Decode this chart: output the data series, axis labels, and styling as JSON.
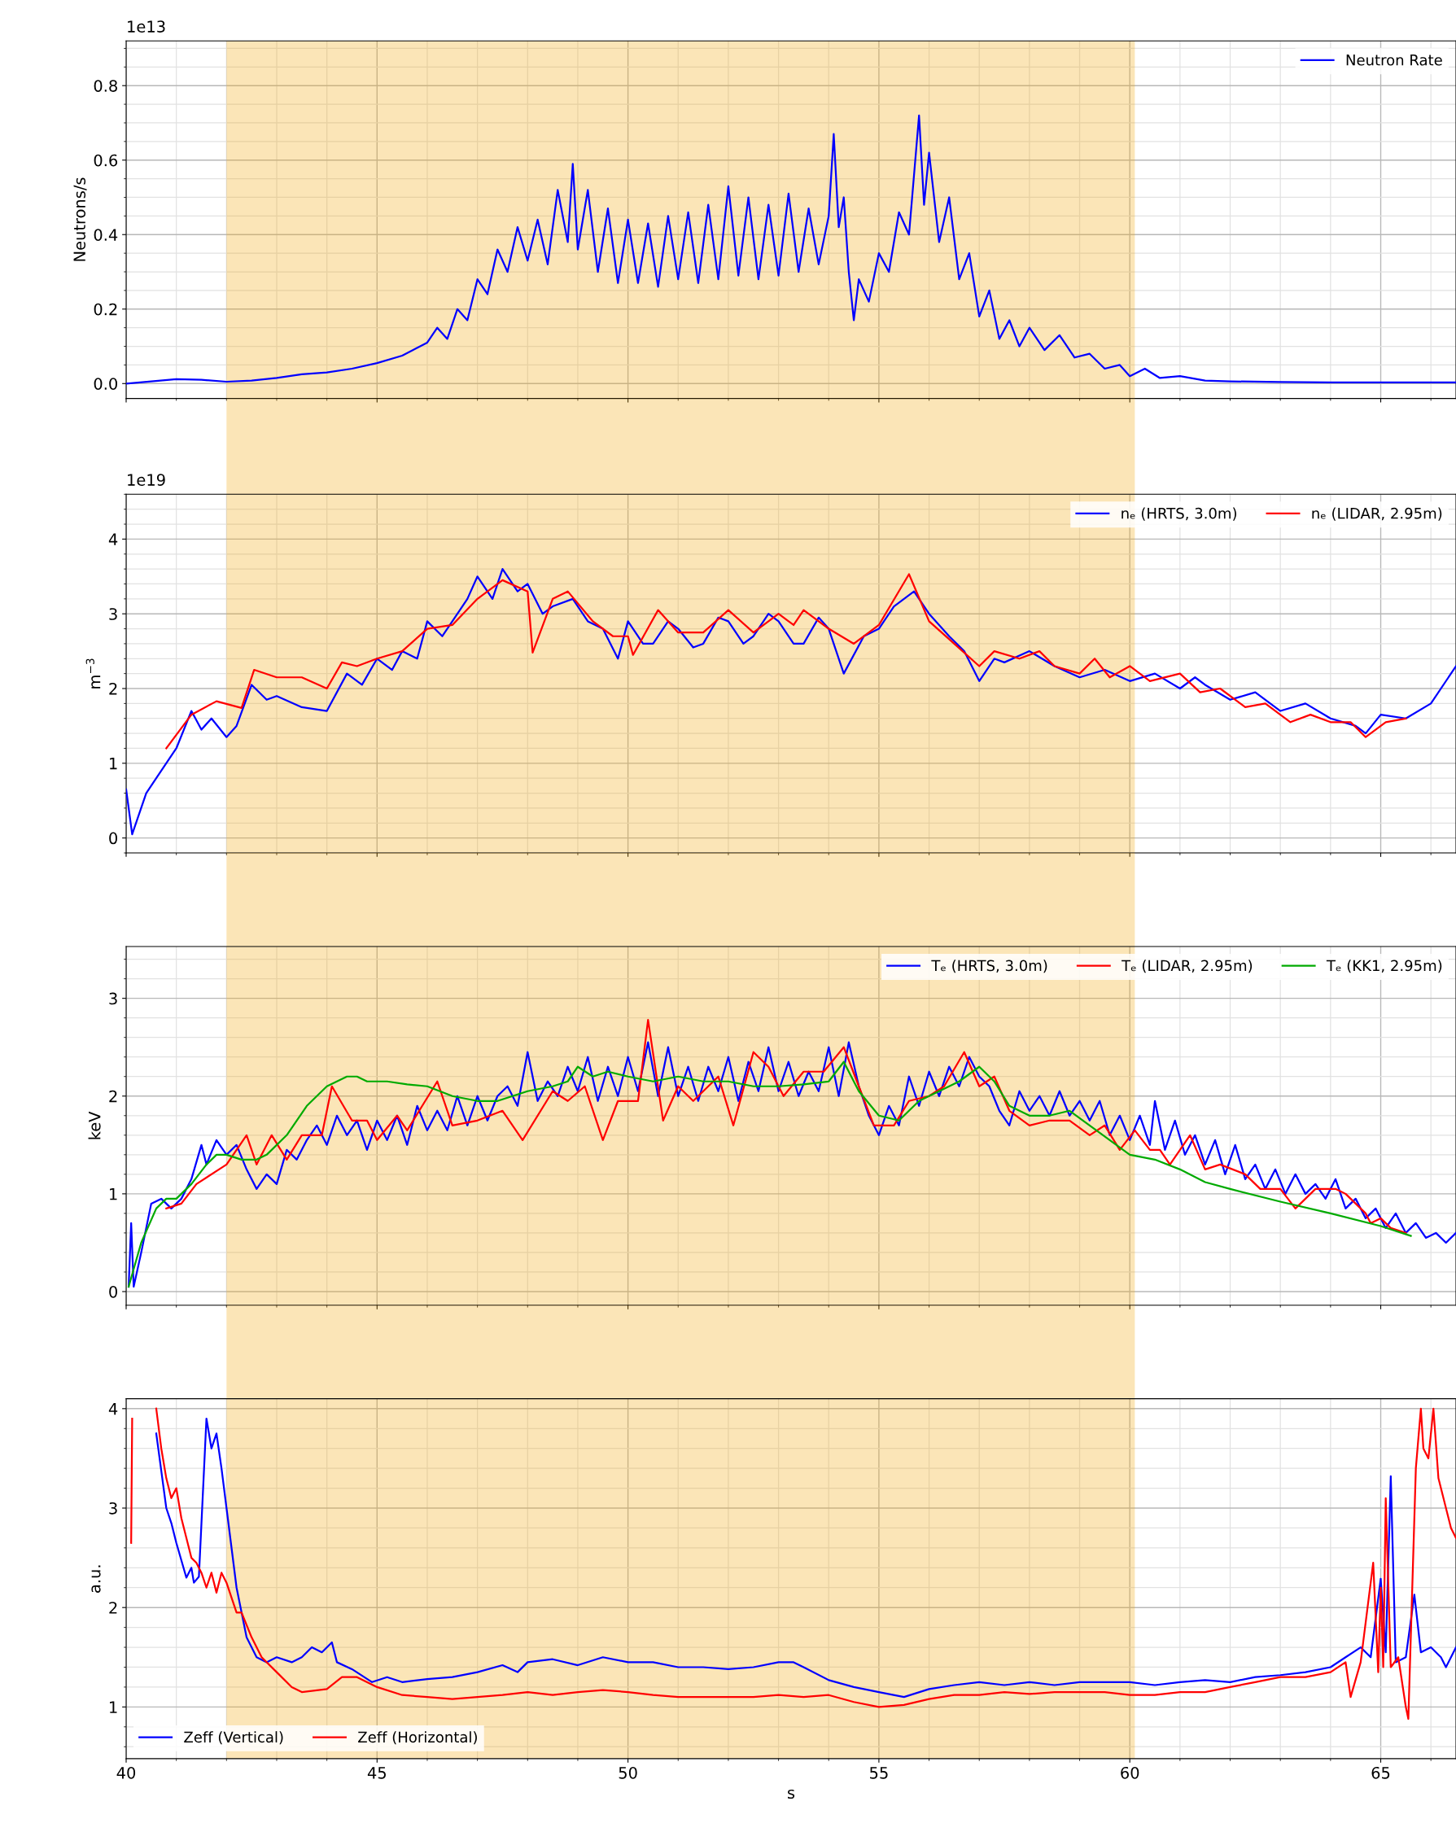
{
  "chart_data": [
    {
      "type": "line",
      "ylabel": "Neutrons/s",
      "annotations": [
        "1e13"
      ],
      "xlim": [
        40,
        66.5
      ],
      "xticks": [
        40,
        45,
        50,
        55,
        60,
        65
      ],
      "ylim": [
        -0.04,
        0.92
      ],
      "yticks": [
        {
          "value": 0,
          "label": "0.0"
        },
        0.2,
        0.4,
        0.6,
        0.8
      ],
      "grid": true,
      "legend": "top right",
      "tick_labels": "y",
      "bands": [
        {
          "axis": "x",
          "from": 42,
          "to": 60.1,
          "color": "#f2a812"
        }
      ],
      "series": [
        {
          "name": "Neutron Rate",
          "color": "#0000ff",
          "x": [
            40,
            41,
            41.5,
            42,
            42.5,
            43,
            43.5,
            44,
            44.5,
            45,
            45.5,
            46,
            46.2,
            46.4,
            46.6,
            46.8,
            47.0,
            47.2,
            47.4,
            47.6,
            47.8,
            48.0,
            48.2,
            48.4,
            48.6,
            48.8,
            48.9,
            49.0,
            49.2,
            49.4,
            49.6,
            49.8,
            50.0,
            50.2,
            50.4,
            50.6,
            50.8,
            51.0,
            51.2,
            51.4,
            51.6,
            51.8,
            52.0,
            52.2,
            52.4,
            52.6,
            52.8,
            53.0,
            53.2,
            53.4,
            53.6,
            53.8,
            54.0,
            54.1,
            54.2,
            54.3,
            54.4,
            54.5,
            54.6,
            54.8,
            55.0,
            55.2,
            55.4,
            55.6,
            55.8,
            55.9,
            56.0,
            56.2,
            56.4,
            56.6,
            56.8,
            57.0,
            57.2,
            57.4,
            57.6,
            57.8,
            58.0,
            58.3,
            58.6,
            58.9,
            59.2,
            59.5,
            59.8,
            60.0,
            60.3,
            60.6,
            61,
            61.5,
            62,
            63,
            64,
            66.5
          ],
          "values": [
            0.0,
            0.012,
            0.01,
            0.005,
            0.008,
            0.015,
            0.025,
            0.03,
            0.04,
            0.055,
            0.075,
            0.11,
            0.15,
            0.12,
            0.2,
            0.17,
            0.28,
            0.24,
            0.36,
            0.3,
            0.42,
            0.33,
            0.44,
            0.32,
            0.52,
            0.38,
            0.59,
            0.36,
            0.52,
            0.3,
            0.47,
            0.27,
            0.44,
            0.27,
            0.43,
            0.26,
            0.45,
            0.28,
            0.46,
            0.27,
            0.48,
            0.28,
            0.53,
            0.29,
            0.5,
            0.28,
            0.48,
            0.29,
            0.51,
            0.3,
            0.47,
            0.32,
            0.45,
            0.67,
            0.42,
            0.5,
            0.3,
            0.17,
            0.28,
            0.22,
            0.35,
            0.3,
            0.46,
            0.4,
            0.72,
            0.48,
            0.62,
            0.38,
            0.5,
            0.28,
            0.35,
            0.18,
            0.25,
            0.12,
            0.17,
            0.1,
            0.15,
            0.09,
            0.13,
            0.07,
            0.08,
            0.04,
            0.05,
            0.02,
            0.04,
            0.015,
            0.02,
            0.008,
            0.006,
            0.004,
            0.003,
            0.003
          ]
        }
      ]
    },
    {
      "type": "line",
      "ylabel": "m$^{−3}$",
      "annotations": [
        "1e19"
      ],
      "xlim": [
        40,
        66.5
      ],
      "xticks": [
        40,
        45,
        50,
        55,
        60,
        65
      ],
      "ylim": [
        -0.2,
        4.6
      ],
      "yticks": [
        0,
        1,
        2,
        3,
        4
      ],
      "grid": true,
      "legend": "top right",
      "tick_labels": "y",
      "bands": [
        {
          "axis": "x",
          "from": 42,
          "to": 60.1,
          "color": "#f2a812"
        }
      ],
      "series": [
        {
          "name": "nₑ (HRTS, 3.0m)",
          "color": "#0000ff",
          "x": [
            40,
            40.12,
            40.4,
            40.6,
            41,
            41.3,
            41.5,
            41.7,
            42,
            42.2,
            42.5,
            42.8,
            43,
            43.5,
            44,
            44.4,
            44.7,
            45,
            45.3,
            45.5,
            45.8,
            46,
            46.3,
            46.5,
            46.8,
            47,
            47.3,
            47.5,
            47.8,
            48,
            48.3,
            48.5,
            48.9,
            49.2,
            49.5,
            49.8,
            50,
            50.3,
            50.5,
            50.8,
            51,
            51.3,
            51.5,
            51.8,
            52,
            52.3,
            52.5,
            52.8,
            53,
            53.3,
            53.5,
            53.8,
            54,
            54.3,
            54.7,
            55,
            55.3,
            55.7,
            56,
            56.4,
            56.7,
            57,
            57.3,
            57.5,
            58,
            58.5,
            59,
            59.5,
            60,
            60.5,
            61,
            61.3,
            61.5,
            62,
            62.5,
            63,
            63.5,
            64,
            64.5,
            64.7,
            65,
            65.5,
            66,
            66.5
          ],
          "values": [
            0.65,
            0.05,
            0.6,
            0.8,
            1.2,
            1.7,
            1.45,
            1.6,
            1.35,
            1.5,
            2.05,
            1.85,
            1.9,
            1.75,
            1.7,
            2.2,
            2.05,
            2.4,
            2.25,
            2.5,
            2.4,
            2.9,
            2.7,
            2.9,
            3.2,
            3.5,
            3.2,
            3.6,
            3.3,
            3.4,
            3.0,
            3.1,
            3.2,
            2.9,
            2.8,
            2.4,
            2.9,
            2.6,
            2.6,
            2.9,
            2.8,
            2.55,
            2.6,
            2.95,
            2.9,
            2.6,
            2.7,
            3.0,
            2.9,
            2.6,
            2.6,
            2.95,
            2.8,
            2.2,
            2.7,
            2.8,
            3.1,
            3.3,
            3.0,
            2.7,
            2.5,
            2.1,
            2.4,
            2.35,
            2.5,
            2.3,
            2.15,
            2.25,
            2.1,
            2.2,
            2.0,
            2.15,
            2.05,
            1.85,
            1.95,
            1.7,
            1.8,
            1.6,
            1.5,
            1.4,
            1.65,
            1.6,
            1.8,
            2.3
          ]
        },
        {
          "name": "nₑ (LIDAR, 2.95m)",
          "color": "#ff0000",
          "x": [
            40.8,
            41.3,
            41.8,
            42.3,
            42.55,
            43,
            43.5,
            44,
            44.3,
            44.6,
            45,
            45.5,
            46,
            46.5,
            47,
            47.5,
            48,
            48.1,
            48.5,
            48.8,
            49.3,
            49.7,
            50,
            50.1,
            50.6,
            51,
            51.5,
            52,
            52.5,
            53,
            53.3,
            53.5,
            54,
            54.5,
            55,
            55.6,
            56,
            56.5,
            57,
            57.3,
            57.8,
            58.2,
            58.5,
            59,
            59.3,
            59.6,
            60,
            60.4,
            61,
            61.4,
            61.8,
            62.3,
            62.7,
            63.2,
            63.6,
            64,
            64.4,
            64.7,
            65.1,
            65.5
          ],
          "values": [
            1.2,
            1.65,
            1.83,
            1.74,
            2.25,
            2.15,
            2.15,
            2.0,
            2.35,
            2.3,
            2.4,
            2.5,
            2.8,
            2.85,
            3.2,
            3.45,
            3.3,
            2.48,
            3.2,
            3.3,
            2.9,
            2.7,
            2.7,
            2.45,
            3.05,
            2.75,
            2.75,
            3.05,
            2.75,
            3.0,
            2.85,
            3.05,
            2.8,
            2.6,
            2.85,
            3.53,
            2.9,
            2.6,
            2.3,
            2.5,
            2.4,
            2.5,
            2.3,
            2.2,
            2.4,
            2.15,
            2.3,
            2.1,
            2.2,
            1.95,
            2.0,
            1.75,
            1.8,
            1.55,
            1.65,
            1.55,
            1.55,
            1.35,
            1.55,
            1.6
          ]
        }
      ]
    },
    {
      "type": "line",
      "ylabel": "keV",
      "xlim": [
        40,
        66.5
      ],
      "xticks": [
        40,
        45,
        50,
        55,
        60,
        65
      ],
      "ylim": [
        -0.14,
        3.53
      ],
      "yticks": [
        0,
        1,
        2,
        3
      ],
      "grid": true,
      "legend": "top right",
      "tick_labels": "y",
      "bands": [
        {
          "axis": "x",
          "from": 42,
          "to": 60.1,
          "color": "#f2a812"
        }
      ],
      "series": [
        {
          "name": "Tₑ (HRTS, 3.0m)",
          "color": "#0000ff",
          "x": [
            40.05,
            40.1,
            40.15,
            40.3,
            40.5,
            40.7,
            40.9,
            41.1,
            41.3,
            41.5,
            41.6,
            41.8,
            42.0,
            42.2,
            42.4,
            42.6,
            42.8,
            43.0,
            43.2,
            43.4,
            43.6,
            43.8,
            44.0,
            44.2,
            44.4,
            44.6,
            44.8,
            45.0,
            45.2,
            45.4,
            45.6,
            45.8,
            46.0,
            46.2,
            46.4,
            46.6,
            46.8,
            47.0,
            47.2,
            47.4,
            47.6,
            47.8,
            48.0,
            48.2,
            48.4,
            48.6,
            48.8,
            49.0,
            49.2,
            49.4,
            49.6,
            49.8,
            50.0,
            50.2,
            50.4,
            50.6,
            50.8,
            51.0,
            51.2,
            51.4,
            51.6,
            51.8,
            52.0,
            52.2,
            52.4,
            52.6,
            52.8,
            53.0,
            53.2,
            53.4,
            53.6,
            53.8,
            54.0,
            54.2,
            54.4,
            54.6,
            54.8,
            55.0,
            55.2,
            55.4,
            55.6,
            55.8,
            56.0,
            56.2,
            56.4,
            56.6,
            56.8,
            57.0,
            57.2,
            57.4,
            57.6,
            57.8,
            58.0,
            58.2,
            58.4,
            58.6,
            58.8,
            59.0,
            59.2,
            59.4,
            59.6,
            59.8,
            60.0,
            60.2,
            60.4,
            60.5,
            60.7,
            60.9,
            61.1,
            61.3,
            61.5,
            61.7,
            61.9,
            62.1,
            62.3,
            62.5,
            62.7,
            62.9,
            63.1,
            63.3,
            63.5,
            63.7,
            63.9,
            64.1,
            64.3,
            64.5,
            64.7,
            64.9,
            65.1,
            65.3,
            65.5,
            65.7,
            65.9,
            66.1,
            66.3,
            66.5
          ],
          "values": [
            0.05,
            0.7,
            0.05,
            0.4,
            0.9,
            0.95,
            0.85,
            0.95,
            1.15,
            1.5,
            1.3,
            1.55,
            1.4,
            1.5,
            1.25,
            1.05,
            1.2,
            1.1,
            1.45,
            1.35,
            1.55,
            1.7,
            1.5,
            1.8,
            1.6,
            1.75,
            1.45,
            1.75,
            1.55,
            1.8,
            1.5,
            1.9,
            1.65,
            1.85,
            1.65,
            2.0,
            1.7,
            2.0,
            1.75,
            2.0,
            2.1,
            1.9,
            2.45,
            1.95,
            2.15,
            2.0,
            2.3,
            2.05,
            2.4,
            1.95,
            2.3,
            2.0,
            2.4,
            2.05,
            2.55,
            2.0,
            2.5,
            2.0,
            2.3,
            1.95,
            2.3,
            2.05,
            2.4,
            1.95,
            2.35,
            2.05,
            2.5,
            2.05,
            2.35,
            2.0,
            2.25,
            2.05,
            2.5,
            2.0,
            2.55,
            2.1,
            1.8,
            1.6,
            1.9,
            1.7,
            2.2,
            1.9,
            2.25,
            2.0,
            2.3,
            2.1,
            2.4,
            2.2,
            2.1,
            1.85,
            1.7,
            2.05,
            1.85,
            2.0,
            1.8,
            2.05,
            1.8,
            1.95,
            1.75,
            1.95,
            1.6,
            1.8,
            1.55,
            1.8,
            1.5,
            1.95,
            1.45,
            1.75,
            1.4,
            1.6,
            1.3,
            1.55,
            1.2,
            1.5,
            1.15,
            1.3,
            1.05,
            1.25,
            1.0,
            1.2,
            1.0,
            1.1,
            0.95,
            1.15,
            0.85,
            0.95,
            0.75,
            0.85,
            0.65,
            0.8,
            0.6,
            0.7,
            0.55,
            0.6,
            0.5,
            0.6
          ]
        },
        {
          "name": "Tₑ (LIDAR, 2.95m)",
          "color": "#ff0000",
          "x": [
            40.8,
            41.1,
            41.4,
            42.0,
            42.4,
            42.6,
            42.9,
            43.2,
            43.5,
            43.9,
            44.1,
            44.5,
            44.8,
            45.0,
            45.4,
            45.6,
            45.9,
            46.2,
            46.5,
            47.0,
            47.5,
            47.9,
            48.5,
            48.8,
            49.14,
            49.5,
            49.8,
            50.2,
            50.4,
            50.7,
            51.0,
            51.3,
            51.5,
            51.8,
            52.1,
            52.5,
            52.8,
            53.1,
            53.5,
            53.9,
            54.3,
            54.6,
            54.9,
            55.3,
            55.6,
            56.0,
            56.3,
            56.7,
            57.0,
            57.3,
            57.6,
            58.0,
            58.4,
            58.8,
            59.2,
            59.5,
            59.8,
            60.1,
            60.4,
            60.6,
            60.8,
            61.2,
            61.5,
            61.8,
            62.3,
            62.6,
            63.0,
            63.3,
            63.7,
            64.1,
            64.3,
            64.5,
            64.7,
            64.8,
            65.0,
            65.2,
            65.5
          ],
          "values": [
            0.85,
            0.9,
            1.1,
            1.3,
            1.6,
            1.3,
            1.6,
            1.35,
            1.6,
            1.6,
            2.1,
            1.75,
            1.75,
            1.55,
            1.8,
            1.65,
            1.9,
            2.15,
            1.7,
            1.75,
            1.85,
            1.55,
            2.05,
            1.95,
            2.1,
            1.55,
            1.95,
            1.95,
            2.78,
            1.75,
            2.1,
            1.95,
            2.05,
            2.2,
            1.7,
            2.45,
            2.3,
            2.0,
            2.25,
            2.25,
            2.5,
            2.1,
            1.7,
            1.7,
            1.95,
            2.0,
            2.1,
            2.45,
            2.1,
            2.2,
            1.85,
            1.7,
            1.75,
            1.75,
            1.6,
            1.7,
            1.45,
            1.65,
            1.45,
            1.45,
            1.3,
            1.6,
            1.25,
            1.3,
            1.2,
            1.05,
            1.05,
            0.85,
            1.05,
            1.05,
            1.0,
            0.9,
            0.8,
            0.7,
            0.75,
            0.65,
            0.6
          ]
        },
        {
          "name": "Tₑ (KK1, 2.95m)",
          "color": "#00aa00",
          "x": [
            40.05,
            40.3,
            40.6,
            40.8,
            41.0,
            41.3,
            41.6,
            41.8,
            42.0,
            42.3,
            42.6,
            42.8,
            43.2,
            43.6,
            44.0,
            44.4,
            44.6,
            44.8,
            45.2,
            45.6,
            46.0,
            46.5,
            47.0,
            47.4,
            48.0,
            48.5,
            48.8,
            49.0,
            49.3,
            49.6,
            50.0,
            50.5,
            51.0,
            51.5,
            52.0,
            52.5,
            53.0,
            53.5,
            54.0,
            54.3,
            54.6,
            55.0,
            55.4,
            55.8,
            56.2,
            56.6,
            57.0,
            57.3,
            57.6,
            58.0,
            58.4,
            58.8,
            59.2,
            59.6,
            60.0,
            60.5,
            61.0,
            61.5,
            62.0,
            63.0,
            64.0,
            65.0,
            65.6
          ],
          "values": [
            0.05,
            0.5,
            0.85,
            0.95,
            0.95,
            1.1,
            1.3,
            1.4,
            1.4,
            1.35,
            1.35,
            1.4,
            1.6,
            1.9,
            2.1,
            2.2,
            2.2,
            2.15,
            2.15,
            2.12,
            2.1,
            2.0,
            1.95,
            1.95,
            2.05,
            2.1,
            2.15,
            2.3,
            2.2,
            2.25,
            2.2,
            2.15,
            2.2,
            2.15,
            2.15,
            2.1,
            2.1,
            2.12,
            2.15,
            2.35,
            2.05,
            1.8,
            1.75,
            1.95,
            2.05,
            2.15,
            2.3,
            2.15,
            1.9,
            1.8,
            1.8,
            1.85,
            1.7,
            1.55,
            1.4,
            1.35,
            1.25,
            1.12,
            1.05,
            0.92,
            0.8,
            0.67,
            0.57
          ]
        }
      ]
    },
    {
      "type": "line",
      "ylabel": "a.u.",
      "xlabel": "s",
      "xlim": [
        40,
        66.5
      ],
      "xticks": [
        40,
        45,
        50,
        55,
        60,
        65
      ],
      "ylim": [
        0.48,
        4.1
      ],
      "yticks": [
        1,
        2,
        3,
        4
      ],
      "grid": true,
      "legend": "bottom left",
      "bands": [
        {
          "axis": "x",
          "from": 42,
          "to": 60.1,
          "color": "#f2a812"
        }
      ],
      "series": [
        {
          "name": "Zeff (Vertical)",
          "color": "#0000ff",
          "x": [
            40.6,
            40.8,
            40.9,
            41.0,
            41.2,
            41.3,
            41.35,
            41.45,
            41.6,
            41.7,
            41.8,
            41.9,
            42.0,
            42.2,
            42.4,
            42.6,
            42.8,
            43.0,
            43.3,
            43.5,
            43.7,
            43.9,
            44.1,
            44.2,
            44.5,
            44.9,
            45.2,
            45.5,
            46.0,
            46.5,
            47.0,
            47.5,
            47.8,
            48.0,
            48.5,
            49.0,
            49.5,
            50.0,
            50.5,
            51.0,
            51.5,
            52.0,
            52.5,
            53.0,
            53.3,
            53.5,
            54.0,
            54.5,
            55.0,
            55.5,
            56.0,
            56.5,
            57.0,
            57.5,
            58.0,
            58.5,
            59.0,
            59.5,
            60.0,
            60.5,
            61.0,
            61.5,
            62.0,
            62.5,
            63.0,
            63.5,
            64.0,
            64.3,
            64.6,
            64.8,
            65.0,
            65.1,
            65.2,
            65.3,
            65.5,
            65.67,
            65.8,
            66.0,
            66.2,
            66.3,
            66.5
          ],
          "values": [
            3.75,
            3.0,
            2.85,
            2.65,
            2.3,
            2.4,
            2.25,
            2.31,
            3.9,
            3.6,
            3.75,
            3.4,
            3.0,
            2.2,
            1.7,
            1.5,
            1.45,
            1.5,
            1.45,
            1.5,
            1.6,
            1.55,
            1.65,
            1.45,
            1.38,
            1.25,
            1.3,
            1.25,
            1.28,
            1.3,
            1.35,
            1.42,
            1.35,
            1.45,
            1.48,
            1.42,
            1.5,
            1.45,
            1.45,
            1.4,
            1.4,
            1.38,
            1.4,
            1.45,
            1.45,
            1.4,
            1.27,
            1.2,
            1.15,
            1.1,
            1.18,
            1.22,
            1.25,
            1.22,
            1.25,
            1.22,
            1.25,
            1.25,
            1.25,
            1.22,
            1.25,
            1.27,
            1.25,
            1.3,
            1.32,
            1.35,
            1.4,
            1.5,
            1.6,
            1.5,
            2.29,
            1.55,
            3.32,
            1.45,
            1.5,
            2.13,
            1.55,
            1.6,
            1.5,
            1.4,
            1.6
          ]
        },
        {
          "name": "Zeff (Horizontal)",
          "color": "#ff0000",
          "x": [
            40.1,
            40.12,
            40.3,
            40.6,
            40.7,
            40.8,
            40.9,
            41.0,
            41.1,
            41.3,
            41.4,
            41.5,
            41.6,
            41.7,
            41.8,
            41.9,
            42.0,
            42.2,
            42.3,
            42.5,
            42.7,
            43.0,
            43.3,
            43.5,
            44.0,
            44.3,
            44.6,
            45.0,
            45.5,
            46.0,
            46.5,
            47.0,
            47.5,
            48.0,
            48.5,
            49.0,
            49.5,
            50.0,
            50.5,
            51.0,
            51.5,
            52.0,
            52.5,
            53.0,
            53.5,
            54.0,
            54.5,
            55.0,
            55.5,
            56.0,
            56.5,
            57.0,
            57.5,
            58.0,
            58.5,
            59.0,
            59.5,
            60.0,
            60.5,
            61.0,
            61.5,
            62.0,
            62.5,
            63.0,
            63.5,
            64.0,
            64.3,
            64.4,
            64.6,
            64.85,
            64.95,
            65.0,
            65.05,
            65.1,
            65.2,
            65.35,
            65.5,
            65.55,
            65.7,
            65.8,
            65.85,
            65.95,
            66.05,
            66.15,
            66.3,
            66.4,
            66.5
          ],
          "values": [
            2.65,
            3.9,
            null,
            4.0,
            3.6,
            3.3,
            3.1,
            3.2,
            2.9,
            2.5,
            2.45,
            2.35,
            2.2,
            2.35,
            2.15,
            2.35,
            2.25,
            1.95,
            1.95,
            1.7,
            1.5,
            1.35,
            1.2,
            1.15,
            1.18,
            1.3,
            1.3,
            1.2,
            1.12,
            1.1,
            1.08,
            1.1,
            1.12,
            1.15,
            1.12,
            1.15,
            1.17,
            1.15,
            1.12,
            1.1,
            1.1,
            1.1,
            1.1,
            1.12,
            1.1,
            1.12,
            1.05,
            1.0,
            1.02,
            1.08,
            1.12,
            1.12,
            1.15,
            1.13,
            1.15,
            1.15,
            1.15,
            1.12,
            1.12,
            1.15,
            1.15,
            1.2,
            1.25,
            1.3,
            1.3,
            1.35,
            1.45,
            1.1,
            1.45,
            2.45,
            1.35,
            2.2,
            1.4,
            3.1,
            1.4,
            1.5,
            1.0,
            0.88,
            3.4,
            4.0,
            3.6,
            3.5,
            4.0,
            3.3,
            3.0,
            2.8,
            2.7
          ]
        }
      ]
    }
  ]
}
